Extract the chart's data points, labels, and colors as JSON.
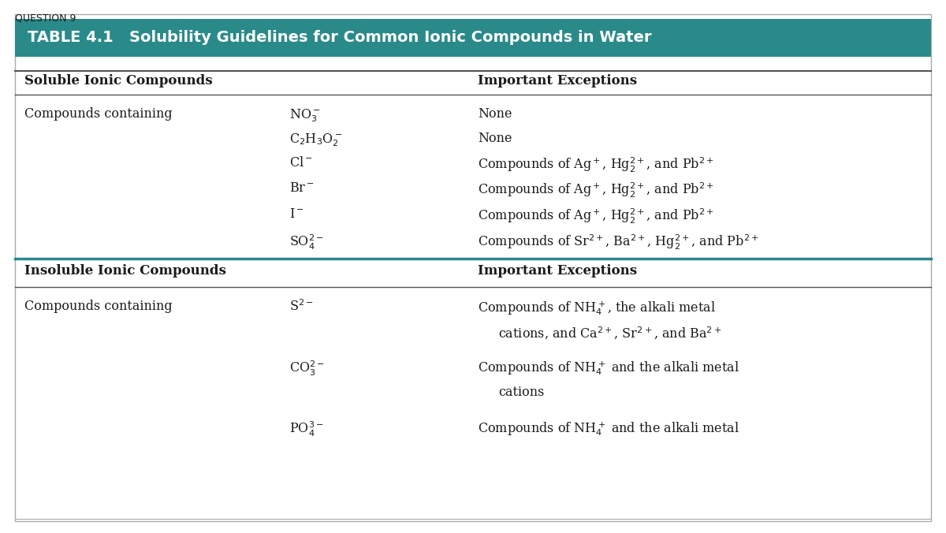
{
  "question_label": "QUESTION 9",
  "title": "TABLE 4.1   Solubility Guidelines for Common Ionic Compounds in Water",
  "title_bg_color": "#2a8a8a",
  "title_text_color": "#ffffff",
  "header1_soluble": "Soluble Ionic Compounds",
  "header1_exceptions": "Important Exceptions",
  "header2_insoluble": "Insoluble Ionic Compounds",
  "header2_exceptions": "Important Exceptions",
  "bg_color": "#ffffff",
  "border_color": "#cccccc",
  "text_color": "#1a1a1a",
  "figsize": [
    12.0,
    6.76
  ],
  "dpi": 100
}
